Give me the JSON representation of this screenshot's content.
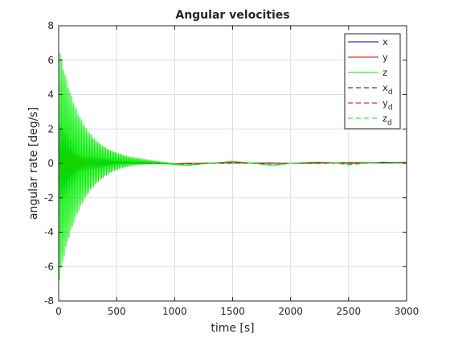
{
  "chart_data": {
    "type": "line",
    "title": "Angular velocities",
    "xlabel": "time [s]",
    "ylabel": "angular rate [deg/s]",
    "xlim": [
      0,
      3000
    ],
    "ylim": [
      -8,
      8
    ],
    "xticks": [
      0,
      500,
      1000,
      1500,
      2000,
      2500,
      3000
    ],
    "yticks": [
      -8,
      -6,
      -4,
      -2,
      0,
      2,
      4,
      6,
      8
    ],
    "grid": true,
    "legend_position": "top-right",
    "series": [
      {
        "name": "x",
        "subscript": "",
        "color": "#0000aa",
        "style": "solid",
        "oscillation": {
          "amplitude": 2.6,
          "decay_time": 170,
          "period": 14,
          "phase": 0.0
        },
        "points": [
          [
            0,
            0
          ],
          [
            500,
            0.03
          ],
          [
            1000,
            -0.02
          ],
          [
            1500,
            0.04
          ],
          [
            2000,
            0.0
          ],
          [
            2500,
            0.04
          ],
          [
            3000,
            0.02
          ]
        ]
      },
      {
        "name": "y",
        "subscript": "",
        "color": "#cc0000",
        "style": "solid",
        "oscillation": {
          "amplitude": 1.6,
          "decay_time": 150,
          "period": 14,
          "phase": 1.2
        },
        "points": [
          [
            0,
            0
          ],
          [
            500,
            0.03
          ],
          [
            1000,
            -0.02
          ],
          [
            1500,
            0.03
          ],
          [
            2000,
            0.0
          ],
          [
            2500,
            0.04
          ],
          [
            3000,
            0.06
          ]
        ]
      },
      {
        "name": "z",
        "subscript": "",
        "color": "#00ee00",
        "style": "solid",
        "oscillation": {
          "amplitude": 7.0,
          "decay_time": 190,
          "period": 14,
          "phase": 0.4
        },
        "points": [
          [
            0,
            0
          ],
          [
            500,
            0.12
          ],
          [
            700,
            0.1
          ],
          [
            900,
            0.02
          ],
          [
            1100,
            -0.1
          ],
          [
            1300,
            0.0
          ],
          [
            1500,
            0.12
          ],
          [
            1700,
            0.0
          ],
          [
            1850,
            -0.1
          ],
          [
            2000,
            0.0
          ],
          [
            2200,
            0.08
          ],
          [
            2350,
            0.05
          ],
          [
            2500,
            -0.05
          ],
          [
            2650,
            0.02
          ],
          [
            2800,
            0.08
          ],
          [
            3000,
            0.02
          ]
        ]
      },
      {
        "name": "x",
        "subscript": "d",
        "color": "#0000aa",
        "style": "dashed",
        "points": [
          [
            0,
            0
          ],
          [
            500,
            0.02
          ],
          [
            1000,
            -0.03
          ],
          [
            1500,
            0.02
          ],
          [
            2000,
            0.0
          ],
          [
            2500,
            0.02
          ],
          [
            3000,
            0.03
          ]
        ]
      },
      {
        "name": "y",
        "subscript": "d",
        "color": "#cc0000",
        "style": "dashed",
        "points": [
          [
            0,
            0
          ],
          [
            500,
            0.02
          ],
          [
            1000,
            -0.03
          ],
          [
            1500,
            0.02
          ],
          [
            2000,
            0.0
          ],
          [
            2500,
            0.03
          ],
          [
            3000,
            0.05
          ]
        ]
      },
      {
        "name": "z",
        "subscript": "d",
        "color": "#00ee00",
        "style": "dashed",
        "points": [
          [
            0,
            0
          ],
          [
            500,
            0.1
          ],
          [
            700,
            0.08
          ],
          [
            900,
            0.0
          ],
          [
            1100,
            -0.12
          ],
          [
            1300,
            0.0
          ],
          [
            1500,
            0.1
          ],
          [
            1700,
            -0.02
          ],
          [
            1850,
            -0.12
          ],
          [
            2000,
            0.0
          ],
          [
            2200,
            0.06
          ],
          [
            2350,
            0.04
          ],
          [
            2500,
            -0.08
          ],
          [
            2650,
            0.0
          ],
          [
            2800,
            0.06
          ],
          [
            3000,
            0.02
          ]
        ]
      }
    ]
  }
}
